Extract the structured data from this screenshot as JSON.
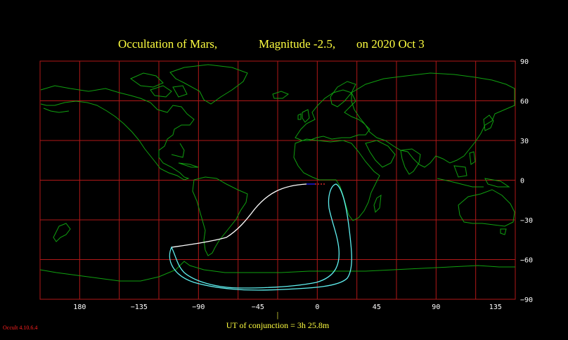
{
  "title": {
    "label_1": "Occultation  of  Mars,",
    "label_2": "Magnitude -2.5,",
    "label_3": "on  2020 Oct  3"
  },
  "axes": {
    "x_ticks": [
      "180",
      "−135",
      "−90",
      "−45",
      "0",
      "45",
      "90",
      "135"
    ],
    "y_ticks": [
      "90",
      "60",
      "30",
      "0",
      "−30",
      "−60",
      "−90"
    ]
  },
  "conjunction": {
    "marker": "|",
    "label": "UT of conjunction =  3h 25.8m"
  },
  "version": "Occult 4.10.6.4",
  "colors": {
    "background": "#000000",
    "grid": "#b01818",
    "coastline": "#10a010",
    "track": "#5ff0f0",
    "daylight_limit": "#ffffff",
    "title": "#ffff40",
    "axis_text": "#ffffff",
    "version": "#ff2020"
  }
}
